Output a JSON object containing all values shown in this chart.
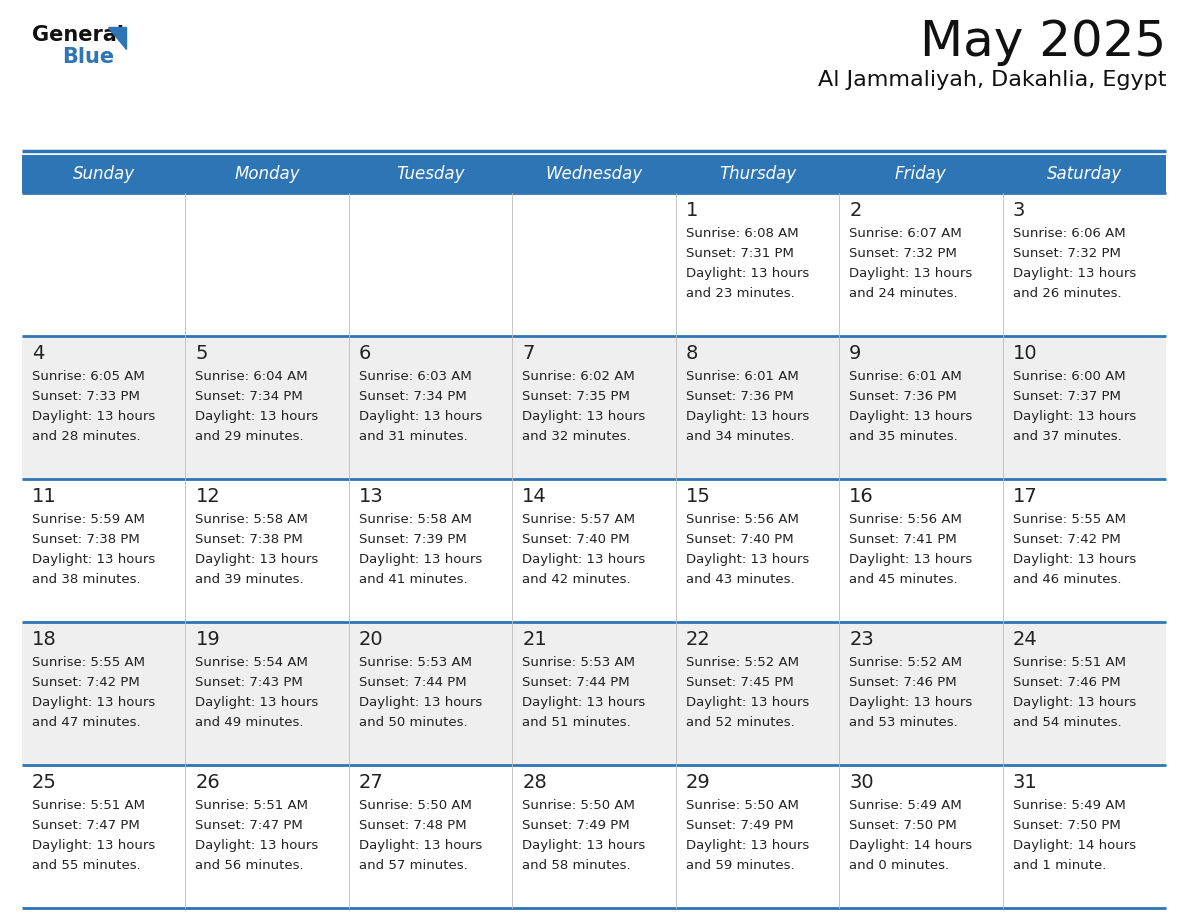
{
  "title": "May 2025",
  "subtitle": "Al Jammaliyah, Dakahlia, Egypt",
  "days_of_week": [
    "Sunday",
    "Monday",
    "Tuesday",
    "Wednesday",
    "Thursday",
    "Friday",
    "Saturday"
  ],
  "header_bg": "#2E75B6",
  "header_text": "#FFFFFF",
  "row_bg_odd": "#EFEFEF",
  "row_bg_even": "#FFFFFF",
  "cell_text_color": "#222222",
  "day_num_color": "#222222",
  "border_color": "#2E75B6",
  "title_color": "#111111",
  "subtitle_color": "#111111",
  "logo_general_color": "#111111",
  "logo_blue_color": "#2E75B6",
  "calendar_data": [
    [
      {
        "day": null,
        "sunrise": null,
        "sunset": null,
        "daylight": null
      },
      {
        "day": null,
        "sunrise": null,
        "sunset": null,
        "daylight": null
      },
      {
        "day": null,
        "sunrise": null,
        "sunset": null,
        "daylight": null
      },
      {
        "day": null,
        "sunrise": null,
        "sunset": null,
        "daylight": null
      },
      {
        "day": 1,
        "sunrise": "6:08 AM",
        "sunset": "7:31 PM",
        "daylight": "13 hours",
        "daylight2": "and 23 minutes."
      },
      {
        "day": 2,
        "sunrise": "6:07 AM",
        "sunset": "7:32 PM",
        "daylight": "13 hours",
        "daylight2": "and 24 minutes."
      },
      {
        "day": 3,
        "sunrise": "6:06 AM",
        "sunset": "7:32 PM",
        "daylight": "13 hours",
        "daylight2": "and 26 minutes."
      }
    ],
    [
      {
        "day": 4,
        "sunrise": "6:05 AM",
        "sunset": "7:33 PM",
        "daylight": "13 hours",
        "daylight2": "and 28 minutes."
      },
      {
        "day": 5,
        "sunrise": "6:04 AM",
        "sunset": "7:34 PM",
        "daylight": "13 hours",
        "daylight2": "and 29 minutes."
      },
      {
        "day": 6,
        "sunrise": "6:03 AM",
        "sunset": "7:34 PM",
        "daylight": "13 hours",
        "daylight2": "and 31 minutes."
      },
      {
        "day": 7,
        "sunrise": "6:02 AM",
        "sunset": "7:35 PM",
        "daylight": "13 hours",
        "daylight2": "and 32 minutes."
      },
      {
        "day": 8,
        "sunrise": "6:01 AM",
        "sunset": "7:36 PM",
        "daylight": "13 hours",
        "daylight2": "and 34 minutes."
      },
      {
        "day": 9,
        "sunrise": "6:01 AM",
        "sunset": "7:36 PM",
        "daylight": "13 hours",
        "daylight2": "and 35 minutes."
      },
      {
        "day": 10,
        "sunrise": "6:00 AM",
        "sunset": "7:37 PM",
        "daylight": "13 hours",
        "daylight2": "and 37 minutes."
      }
    ],
    [
      {
        "day": 11,
        "sunrise": "5:59 AM",
        "sunset": "7:38 PM",
        "daylight": "13 hours",
        "daylight2": "and 38 minutes."
      },
      {
        "day": 12,
        "sunrise": "5:58 AM",
        "sunset": "7:38 PM",
        "daylight": "13 hours",
        "daylight2": "and 39 minutes."
      },
      {
        "day": 13,
        "sunrise": "5:58 AM",
        "sunset": "7:39 PM",
        "daylight": "13 hours",
        "daylight2": "and 41 minutes."
      },
      {
        "day": 14,
        "sunrise": "5:57 AM",
        "sunset": "7:40 PM",
        "daylight": "13 hours",
        "daylight2": "and 42 minutes."
      },
      {
        "day": 15,
        "sunrise": "5:56 AM",
        "sunset": "7:40 PM",
        "daylight": "13 hours",
        "daylight2": "and 43 minutes."
      },
      {
        "day": 16,
        "sunrise": "5:56 AM",
        "sunset": "7:41 PM",
        "daylight": "13 hours",
        "daylight2": "and 45 minutes."
      },
      {
        "day": 17,
        "sunrise": "5:55 AM",
        "sunset": "7:42 PM",
        "daylight": "13 hours",
        "daylight2": "and 46 minutes."
      }
    ],
    [
      {
        "day": 18,
        "sunrise": "5:55 AM",
        "sunset": "7:42 PM",
        "daylight": "13 hours",
        "daylight2": "and 47 minutes."
      },
      {
        "day": 19,
        "sunrise": "5:54 AM",
        "sunset": "7:43 PM",
        "daylight": "13 hours",
        "daylight2": "and 49 minutes."
      },
      {
        "day": 20,
        "sunrise": "5:53 AM",
        "sunset": "7:44 PM",
        "daylight": "13 hours",
        "daylight2": "and 50 minutes."
      },
      {
        "day": 21,
        "sunrise": "5:53 AM",
        "sunset": "7:44 PM",
        "daylight": "13 hours",
        "daylight2": "and 51 minutes."
      },
      {
        "day": 22,
        "sunrise": "5:52 AM",
        "sunset": "7:45 PM",
        "daylight": "13 hours",
        "daylight2": "and 52 minutes."
      },
      {
        "day": 23,
        "sunrise": "5:52 AM",
        "sunset": "7:46 PM",
        "daylight": "13 hours",
        "daylight2": "and 53 minutes."
      },
      {
        "day": 24,
        "sunrise": "5:51 AM",
        "sunset": "7:46 PM",
        "daylight": "13 hours",
        "daylight2": "and 54 minutes."
      }
    ],
    [
      {
        "day": 25,
        "sunrise": "5:51 AM",
        "sunset": "7:47 PM",
        "daylight": "13 hours",
        "daylight2": "and 55 minutes."
      },
      {
        "day": 26,
        "sunrise": "5:51 AM",
        "sunset": "7:47 PM",
        "daylight": "13 hours",
        "daylight2": "and 56 minutes."
      },
      {
        "day": 27,
        "sunrise": "5:50 AM",
        "sunset": "7:48 PM",
        "daylight": "13 hours",
        "daylight2": "and 57 minutes."
      },
      {
        "day": 28,
        "sunrise": "5:50 AM",
        "sunset": "7:49 PM",
        "daylight": "13 hours",
        "daylight2": "and 58 minutes."
      },
      {
        "day": 29,
        "sunrise": "5:50 AM",
        "sunset": "7:49 PM",
        "daylight": "13 hours",
        "daylight2": "and 59 minutes."
      },
      {
        "day": 30,
        "sunrise": "5:49 AM",
        "sunset": "7:50 PM",
        "daylight": "14 hours",
        "daylight2": "and 0 minutes."
      },
      {
        "day": 31,
        "sunrise": "5:49 AM",
        "sunset": "7:50 PM",
        "daylight": "14 hours",
        "daylight2": "and 1 minute."
      }
    ]
  ]
}
